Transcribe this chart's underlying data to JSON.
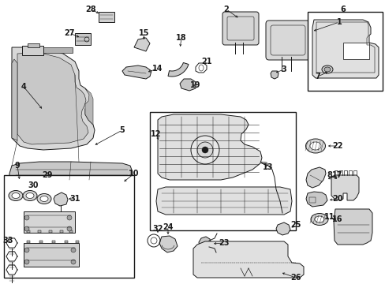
{
  "bg_color": "#ffffff",
  "line_color": "#1a1a1a",
  "figsize": [
    4.89,
    3.6
  ],
  "dpi": 100,
  "lw": 0.7,
  "seat_color": "#e8e8e8",
  "frame_color": "#cccccc"
}
